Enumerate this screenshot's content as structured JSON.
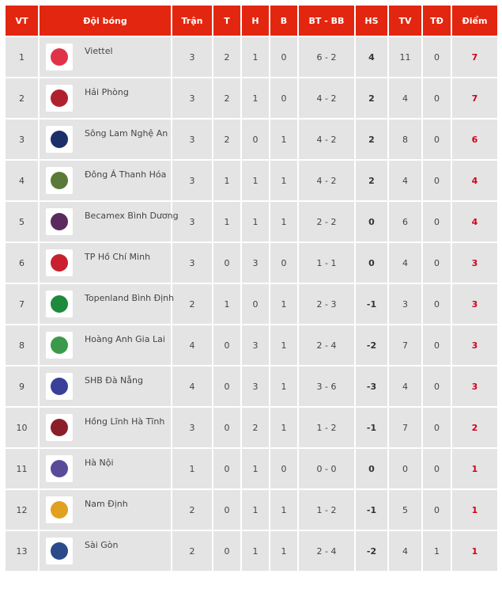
{
  "headers": [
    "VT",
    "Đội bóng",
    "Trận",
    "T",
    "H",
    "B",
    "BT - BB",
    "HS",
    "TV",
    "TĐ",
    "Điểm"
  ],
  "colors": {
    "header": "#e3260f",
    "row": "#e4e4e4",
    "points": "#d0021b"
  },
  "rows": [
    {
      "vt": "1",
      "team": "Viettel",
      "logo_color": "#e0334a",
      "tran": "3",
      "t": "2",
      "h": "1",
      "b": "0",
      "btbb": "6 - 2",
      "hs": "4",
      "tv": "11",
      "td": "0",
      "diem": "7"
    },
    {
      "vt": "2",
      "team": "Hải Phòng",
      "logo_color": "#b0212e",
      "tran": "3",
      "t": "2",
      "h": "1",
      "b": "0",
      "btbb": "4 - 2",
      "hs": "2",
      "tv": "4",
      "td": "0",
      "diem": "7"
    },
    {
      "vt": "3",
      "team": "Sông Lam Nghệ An",
      "logo_color": "#1c2f6b",
      "tran": "3",
      "t": "2",
      "h": "0",
      "b": "1",
      "btbb": "4 - 2",
      "hs": "2",
      "tv": "8",
      "td": "0",
      "diem": "6"
    },
    {
      "vt": "4",
      "team": "Đông Á Thanh Hóa",
      "logo_color": "#5a7a3a",
      "tran": "3",
      "t": "1",
      "h": "1",
      "b": "1",
      "btbb": "4 - 2",
      "hs": "2",
      "tv": "4",
      "td": "0",
      "diem": "4"
    },
    {
      "vt": "5",
      "team": "Becamex Bình Dương",
      "logo_color": "#5b2a5e",
      "tran": "3",
      "t": "1",
      "h": "1",
      "b": "1",
      "btbb": "2 - 2",
      "hs": "0",
      "tv": "6",
      "td": "0",
      "diem": "4"
    },
    {
      "vt": "6",
      "team": "TP Hồ Chí Minh",
      "logo_color": "#c8202f",
      "tran": "3",
      "t": "0",
      "h": "3",
      "b": "0",
      "btbb": "1 - 1",
      "hs": "0",
      "tv": "4",
      "td": "0",
      "diem": "3"
    },
    {
      "vt": "7",
      "team": "Topenland Bình Định",
      "logo_color": "#1e8a3c",
      "tran": "2",
      "t": "1",
      "h": "0",
      "b": "1",
      "btbb": "2 - 3",
      "hs": "-1",
      "tv": "3",
      "td": "0",
      "diem": "3"
    },
    {
      "vt": "8",
      "team": "Hoàng Anh Gia Lai",
      "logo_color": "#3a9a4a",
      "tran": "4",
      "t": "0",
      "h": "3",
      "b": "1",
      "btbb": "2 - 4",
      "hs": "-2",
      "tv": "7",
      "td": "0",
      "diem": "3"
    },
    {
      "vt": "9",
      "team": "SHB Đà Nẵng",
      "logo_color": "#3a3f9a",
      "tran": "4",
      "t": "0",
      "h": "3",
      "b": "1",
      "btbb": "3 - 6",
      "hs": "-3",
      "tv": "4",
      "td": "0",
      "diem": "3"
    },
    {
      "vt": "10",
      "team": "Hồng Lĩnh Hà Tĩnh",
      "logo_color": "#8a1f2a",
      "tran": "3",
      "t": "0",
      "h": "2",
      "b": "1",
      "btbb": "1 - 2",
      "hs": "-1",
      "tv": "7",
      "td": "0",
      "diem": "2"
    },
    {
      "vt": "11",
      "team": "Hà Nội",
      "logo_color": "#5a4a9a",
      "tran": "1",
      "t": "0",
      "h": "1",
      "b": "0",
      "btbb": "0 - 0",
      "hs": "0",
      "tv": "0",
      "td": "0",
      "diem": "1"
    },
    {
      "vt": "12",
      "team": "Nam Định",
      "logo_color": "#e0a020",
      "tran": "2",
      "t": "0",
      "h": "1",
      "b": "1",
      "btbb": "1 - 2",
      "hs": "-1",
      "tv": "5",
      "td": "0",
      "diem": "1"
    },
    {
      "vt": "13",
      "team": "Sài Gòn",
      "logo_color": "#2a4a8a",
      "tran": "2",
      "t": "0",
      "h": "1",
      "b": "1",
      "btbb": "2 - 4",
      "hs": "-2",
      "tv": "4",
      "td": "1",
      "diem": "1"
    }
  ]
}
